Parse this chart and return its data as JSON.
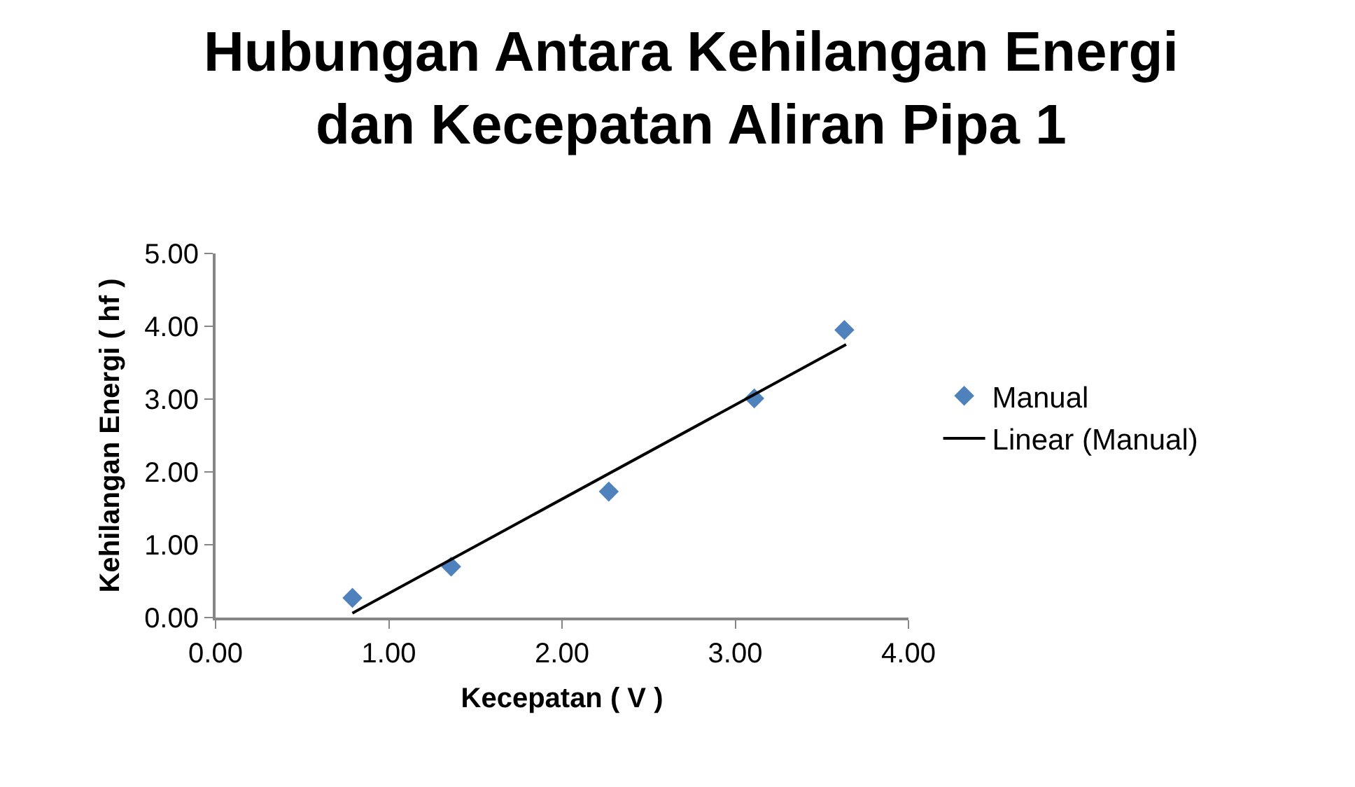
{
  "chart_data": {
    "type": "scatter",
    "title": "Hubungan Antara Kehilangan Energi\ndan Kecepatan Aliran Pipa 1",
    "xlabel": "Kecepatan ( V )",
    "ylabel": "Kehilangan Energi ( hf )",
    "x": [
      0.79,
      1.36,
      2.27,
      3.11,
      3.63
    ],
    "series": [
      {
        "name": "Manual",
        "color": "#4f81bd",
        "marker": "diamond",
        "values": [
          0.27,
          0.7,
          1.73,
          3.01,
          3.95
        ]
      },
      {
        "name": "Linear (Manual)",
        "type": "line",
        "color": "#000000",
        "marker": "none",
        "x": [
          0.79,
          3.64
        ],
        "values": [
          0.06,
          3.75
        ]
      }
    ],
    "xlim": [
      0,
      4
    ],
    "xticks": [
      {
        "value": 0,
        "label": "0.00"
      },
      {
        "value": 1,
        "label": "1.00"
      },
      {
        "value": 2,
        "label": "2.00"
      },
      {
        "value": 3,
        "label": "3.00"
      },
      {
        "value": 4,
        "label": "4.00"
      }
    ],
    "ylim": [
      0,
      5
    ],
    "yticks": [
      {
        "value": 0,
        "label": "0.00"
      },
      {
        "value": 1,
        "label": "1.00"
      },
      {
        "value": 2,
        "label": "2.00"
      },
      {
        "value": 3,
        "label": "3.00"
      },
      {
        "value": 4,
        "label": "4.00"
      },
      {
        "value": 5,
        "label": "5.00"
      }
    ],
    "grid": false,
    "legend": "right"
  }
}
